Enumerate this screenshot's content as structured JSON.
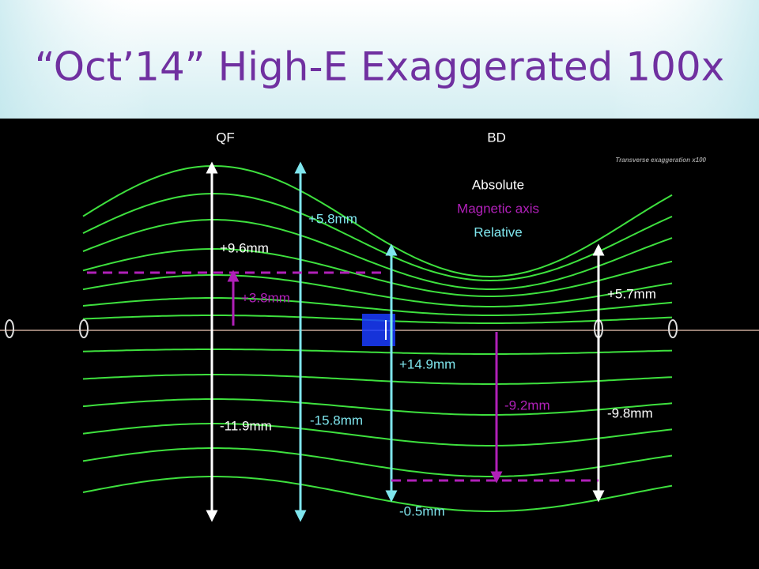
{
  "header": {
    "title": "“Oct’14” High-E Exaggerated 100x"
  },
  "diagram": {
    "magnet_labels": [
      "QF",
      "BD"
    ],
    "note": "Transverse exaggeration x100",
    "legend": [
      "Absolute",
      "Magnetic axis",
      "Relative"
    ],
    "annotations": [
      "+9.6mm",
      "-11.9mm",
      "+5.8mm",
      "-15.8mm",
      "+3.8mm",
      "+14.9mm",
      "-0.5mm",
      "-9.2mm",
      "+5.7mm",
      "-9.8mm"
    ]
  }
}
